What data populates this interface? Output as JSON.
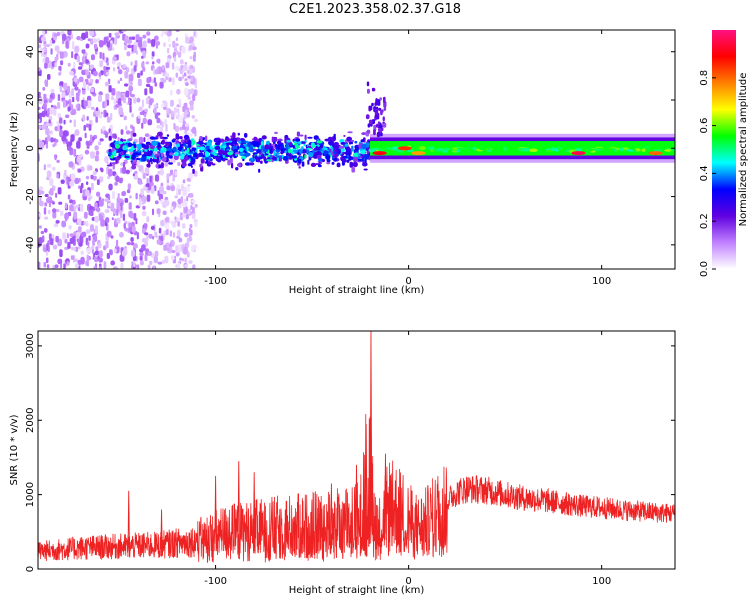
{
  "title": "C2E1.2023.358.02.37.G18",
  "chart_data": [
    {
      "type": "heatmap",
      "xlabel": "Height of straight line (km)",
      "ylabel": "Frequency (Hz)",
      "xlim": [
        -192,
        138
      ],
      "ylim": [
        -50,
        49
      ],
      "xticks": [
        -100,
        0,
        100
      ],
      "yticks": [
        -40,
        -20,
        0,
        20,
        40
      ],
      "colorbar": {
        "label": "Normalized spectral amplitude",
        "range": [
          0,
          1
        ],
        "ticks": [
          0.0,
          0.2,
          0.4,
          0.6,
          0.8
        ],
        "tick_labels": [
          "0.0",
          "0.2",
          "0.4",
          "0.6",
          "0.8"
        ],
        "colors": [
          "#ffffff",
          "#c080ff",
          "#6000e0",
          "#0000ff",
          "#00ffff",
          "#00ff00",
          "#ffff00",
          "#ff8000",
          "#ff0000",
          "#ff1080"
        ]
      },
      "regions": [
        {
          "x": [
            -192,
            -118
          ],
          "freq": [
            -50,
            49
          ],
          "amplitude": 0.12,
          "pattern": "scattered noise"
        },
        {
          "x": [
            -155,
            -20
          ],
          "freq": [
            -10,
            8
          ],
          "amplitude": 0.35,
          "pattern": "noisy band"
        },
        {
          "x": [
            -20,
            138
          ],
          "freq": [
            -3,
            3
          ],
          "amplitude": 0.55,
          "pattern": "narrow carrier line"
        },
        {
          "x": [
            -22,
            -12
          ],
          "freq": [
            5,
            28
          ],
          "amplitude": 0.15,
          "pattern": "spur"
        }
      ],
      "peaks": [
        {
          "x": -15,
          "freq": -2,
          "amplitude": 0.9
        },
        {
          "x": -2,
          "freq": 0,
          "amplitude": 0.85
        },
        {
          "x": 5,
          "freq": -2,
          "amplitude": 0.75
        },
        {
          "x": 88,
          "freq": -2,
          "amplitude": 0.95
        },
        {
          "x": 128,
          "freq": -2,
          "amplitude": 0.8
        }
      ]
    },
    {
      "type": "line",
      "xlabel": "Height of straight line (km)",
      "ylabel": "SNR (10 * v/v)",
      "xlim": [
        -192,
        138
      ],
      "ylim": [
        0,
        3200
      ],
      "xticks": [
        -100,
        0,
        100
      ],
      "yticks": [
        0,
        1000,
        2000,
        3000
      ],
      "color": "#ee2222",
      "series": [
        {
          "x": [
            -192,
            -170,
            -150,
            -130,
            -110,
            -95,
            -80,
            -65,
            -50,
            -40,
            -30,
            -25,
            -21,
            -18,
            -15,
            -10,
            -5,
            0,
            5,
            10,
            15,
            20,
            25,
            30,
            40,
            50,
            60,
            70,
            80,
            90,
            100,
            110,
            120,
            130,
            138
          ],
          "y": [
            250,
            300,
            320,
            340,
            400,
            520,
            560,
            600,
            620,
            640,
            680,
            750,
            1500,
            800,
            600,
            900,
            850,
            700,
            600,
            680,
            800,
            950,
            1050,
            1100,
            1080,
            1020,
            970,
            940,
            900,
            860,
            840,
            810,
            790,
            770,
            760
          ]
        }
      ],
      "spikes": [
        {
          "x": -145,
          "y": 1050
        },
        {
          "x": -128,
          "y": 800
        },
        {
          "x": -100,
          "y": 1250
        },
        {
          "x": -88,
          "y": 1450
        },
        {
          "x": -80,
          "y": 1300
        },
        {
          "x": -40,
          "y": 1150
        },
        {
          "x": -27,
          "y": 1400
        },
        {
          "x": -22,
          "y": 1950
        },
        {
          "x": -19.5,
          "y": 3200
        },
        {
          "x": -12,
          "y": 1550
        }
      ]
    }
  ]
}
